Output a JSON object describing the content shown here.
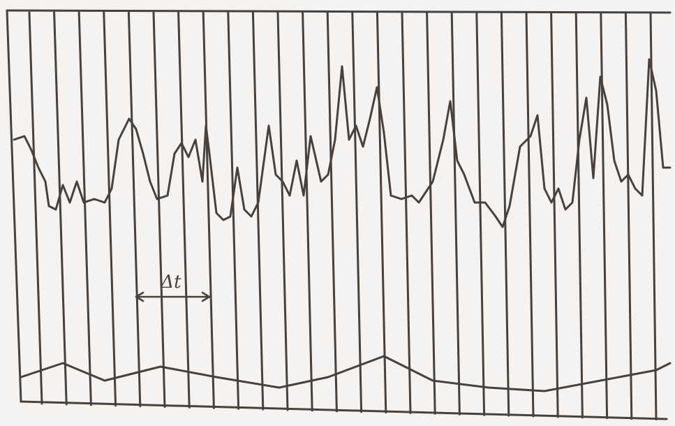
{
  "annotation": {
    "label": "Δt"
  }
}
